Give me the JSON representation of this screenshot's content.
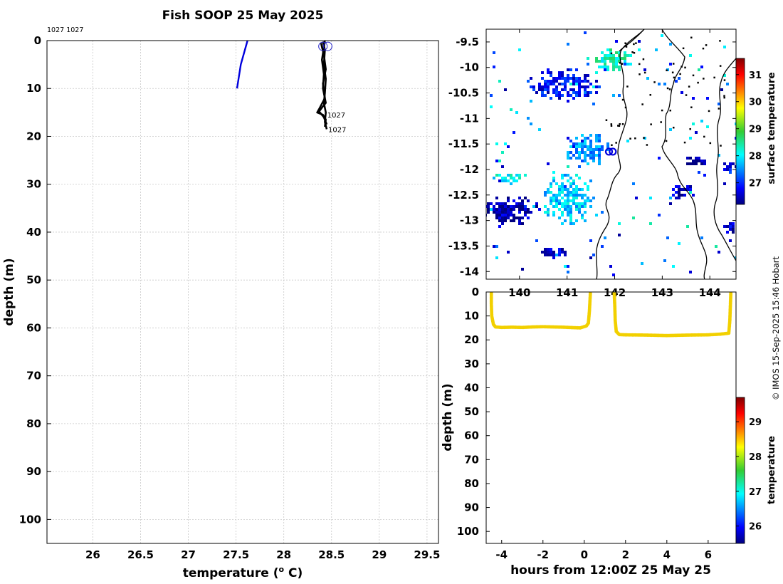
{
  "title": "Fish SOOP 25 May 2025",
  "credit": "© IMOS 15-Sep-2025 15:46 Hobart",
  "chart_data": [
    {
      "type": "line",
      "panel": "profile",
      "xlabel": "temperature (",
      "xlabel_sup": "o",
      "xlabel_unit": " C)",
      "ylabel": "depth (m)",
      "xlim": [
        25.52,
        29.62
      ],
      "ylim": [
        105,
        0
      ],
      "y_reversed": true,
      "grid": true,
      "xticks": [
        26,
        26.5,
        27,
        27.5,
        28,
        28.5,
        29,
        29.5
      ],
      "yticks": [
        0,
        10,
        20,
        30,
        40,
        50,
        60,
        70,
        80,
        90,
        100
      ],
      "top_annotation": "1027 1027",
      "series": [
        {
          "color": "#0000dd",
          "points": [
            [
              27.62,
              0
            ],
            [
              27.55,
              5
            ],
            [
              27.51,
              10
            ]
          ]
        },
        {
          "color": "#000000",
          "points": [
            [
              28.41,
              0.2
            ],
            [
              28.43,
              2
            ],
            [
              28.42,
              5
            ],
            [
              28.44,
              8
            ],
            [
              28.43,
              11
            ],
            [
              28.42,
              13
            ],
            [
              28.44,
              15
            ],
            [
              28.43,
              17
            ],
            [
              28.45,
              18.5
            ]
          ]
        },
        {
          "color": "#000000",
          "points": [
            [
              28.39,
              0.5
            ],
            [
              28.42,
              3
            ],
            [
              28.44,
              6
            ],
            [
              28.41,
              9
            ],
            [
              28.43,
              12
            ],
            [
              28.37,
              14.3
            ],
            [
              28.35,
              15
            ],
            [
              28.41,
              15.5
            ],
            [
              28.44,
              16.5
            ],
            [
              28.43,
              18
            ]
          ]
        },
        {
          "color": "#000000",
          "points": [
            [
              28.43,
              0
            ],
            [
              28.4,
              4
            ],
            [
              28.42,
              7
            ],
            [
              28.41,
              10
            ],
            [
              28.44,
              13
            ],
            [
              28.4,
              14
            ],
            [
              28.37,
              14.8
            ],
            [
              28.42,
              16
            ],
            [
              28.45,
              17.5
            ]
          ]
        }
      ],
      "markers": [
        {
          "x": 28.41,
          "y": 1.2,
          "shape": "circle"
        },
        {
          "x": 28.46,
          "y": 1.2,
          "shape": "circle"
        }
      ],
      "annotations": [
        {
          "text": "1027",
          "x": 28.44,
          "y": 15.5
        },
        {
          "text": "1027",
          "x": 28.45,
          "y": 18.5
        }
      ]
    },
    {
      "type": "heatmap",
      "panel": "map",
      "variable": "surface temperature",
      "xlim": [
        139.3,
        144.55
      ],
      "ylim": [
        -14.15,
        -9.25
      ],
      "xticks": [
        140,
        141,
        142,
        143,
        144
      ],
      "yticks": [
        -9.5,
        -10,
        -10.5,
        -11,
        -11.5,
        -12,
        -12.5,
        -13,
        -13.5,
        -14
      ],
      "ytick_labels": [
        "-9.5",
        "-10",
        "-10.5",
        "-11",
        "-11.5",
        "-12",
        "-12.5",
        "-13",
        "-13.5",
        "-14"
      ],
      "colorbar": {
        "label": "surface temperature",
        "ticks": [
          27,
          28,
          29,
          30,
          31
        ],
        "range": [
          26.2,
          31.6
        ]
      },
      "ship_positions": [
        [
          141.88,
          -11.65
        ],
        [
          141.96,
          -11.65
        ]
      ],
      "sst_patches": [
        {
          "lon": 141.0,
          "lat": -12.6,
          "rx": 0.55,
          "ry": 0.55,
          "temp": 27.8
        },
        {
          "lon": 139.8,
          "lat": -12.8,
          "rx": 0.6,
          "ry": 0.3,
          "temp": 26.4
        },
        {
          "lon": 139.8,
          "lat": -12.1,
          "rx": 0.35,
          "ry": 0.15,
          "temp": 28.0
        },
        {
          "lon": 141.9,
          "lat": -9.8,
          "rx": 0.45,
          "ry": 0.25,
          "temp": 28.3
        },
        {
          "lon": 140.9,
          "lat": -10.3,
          "rx": 0.8,
          "ry": 0.35,
          "temp": 26.8
        },
        {
          "lon": 141.4,
          "lat": -11.6,
          "rx": 0.5,
          "ry": 0.35,
          "temp": 27.5
        },
        {
          "lon": 143.7,
          "lat": -11.8,
          "rx": 0.3,
          "ry": 0.12,
          "temp": 26.3
        },
        {
          "lon": 143.4,
          "lat": -12.4,
          "rx": 0.3,
          "ry": 0.15,
          "temp": 26.5
        },
        {
          "lon": 144.4,
          "lat": -11.9,
          "rx": 0.2,
          "ry": 0.12,
          "temp": 26.8
        },
        {
          "lon": 140.7,
          "lat": -13.6,
          "rx": 0.3,
          "ry": 0.12,
          "temp": 26.6
        },
        {
          "lon": 144.4,
          "lat": -13.2,
          "rx": 0.15,
          "ry": 0.2,
          "temp": 26.5
        }
      ]
    },
    {
      "type": "line",
      "panel": "timeseries",
      "xlabel": "hours from 12:00Z 25 May 25",
      "ylabel": "depth (m)",
      "xlim": [
        -4.75,
        7.35
      ],
      "ylim": [
        105,
        0
      ],
      "y_reversed": true,
      "xticks": [
        -4,
        -2,
        0,
        2,
        4,
        6
      ],
      "yticks": [
        0,
        10,
        20,
        30,
        40,
        50,
        60,
        70,
        80,
        90,
        100
      ],
      "colorbar": {
        "label": "temperature",
        "ticks": [
          26,
          27,
          28,
          29
        ],
        "range": [
          25.5,
          29.7
        ]
      },
      "series": [
        {
          "color": "#f2d000",
          "points": [
            [
              -4.5,
              0
            ],
            [
              -4.5,
              5
            ],
            [
              -4.48,
              10
            ],
            [
              -4.4,
              13.5
            ],
            [
              -4.3,
              14.6
            ],
            [
              -4.0,
              14.8
            ],
            [
              -3.5,
              14.7
            ],
            [
              -3.0,
              14.8
            ],
            [
              -2.5,
              14.6
            ],
            [
              -2.0,
              14.5
            ],
            [
              -1.5,
              14.6
            ],
            [
              -1.0,
              14.7
            ],
            [
              -0.5,
              14.9
            ],
            [
              -0.2,
              15.0
            ],
            [
              0.1,
              14.2
            ],
            [
              0.2,
              13
            ],
            [
              0.25,
              8
            ],
            [
              0.3,
              0
            ]
          ]
        },
        {
          "color": "#f2d000",
          "points": [
            [
              1.45,
              0
            ],
            [
              1.48,
              6
            ],
            [
              1.5,
              12
            ],
            [
              1.55,
              16.5
            ],
            [
              1.7,
              17.8
            ],
            [
              2.0,
              17.9
            ],
            [
              3.0,
              18.0
            ],
            [
              4.0,
              18.2
            ],
            [
              5.0,
              18.0
            ],
            [
              6.0,
              17.9
            ],
            [
              6.6,
              17.6
            ],
            [
              7.0,
              17.2
            ],
            [
              7.05,
              12
            ],
            [
              7.08,
              5
            ],
            [
              7.1,
              0
            ]
          ]
        }
      ]
    }
  ]
}
